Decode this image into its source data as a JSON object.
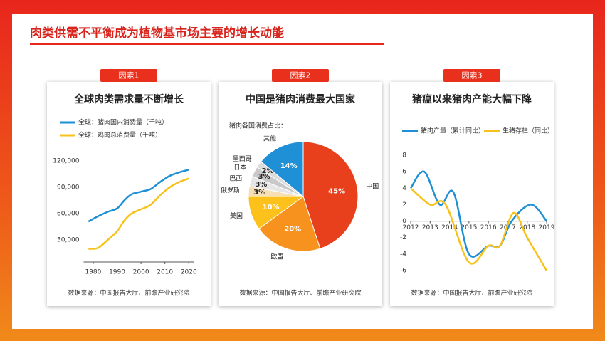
{
  "title": "肉类供需不平衡成为植物基市场主要的增长动能",
  "chart_data": [
    {
      "type": "line",
      "badge": "因素1",
      "title": "全球肉类需求量不断增长",
      "xlim": [
        1976,
        2022
      ],
      "xticks": [
        1980,
        1990,
        2000,
        2010,
        2020
      ],
      "ylim": [
        5000,
        120000
      ],
      "yticks": [
        {
          "value": 30000,
          "label": "30,000"
        },
        {
          "value": 60000,
          "label": "60,000"
        },
        {
          "value": 90000,
          "label": "90,000"
        },
        {
          "value": 120000,
          "label": "120,000"
        }
      ],
      "x": [
        1978,
        1982,
        1986,
        1990,
        1993,
        1996,
        2000,
        2004,
        2008,
        2012,
        2016,
        2020
      ],
      "series": [
        {
          "name": "全球：猪肉国内消费量（千吨）",
          "color": "#1f8fd6",
          "values": [
            51000,
            57000,
            62000,
            66000,
            75000,
            82000,
            85000,
            88000,
            96000,
            103000,
            107000,
            110000
          ]
        },
        {
          "name": "全球：鸡肉总消费量（千吨）",
          "color": "#f7c21b",
          "values": [
            20000,
            21000,
            30000,
            40000,
            52000,
            60000,
            65000,
            70000,
            81000,
            90000,
            96000,
            100000
          ]
        }
      ],
      "source": "数据来源：中国报告大厅、前瞻产业研究院"
    },
    {
      "type": "pie",
      "badge": "因素2",
      "title": "中国是猪肉消费最大国家",
      "subtitle": "猪肉各国消费占比：",
      "categories": [
        "中国",
        "欧盟",
        "美国",
        "俄罗斯",
        "巴西",
        "日本",
        "墨西哥",
        "其他"
      ],
      "values": [
        45,
        20,
        10,
        3,
        3,
        3,
        2,
        14
      ],
      "value_labels": [
        "45%",
        "20%",
        "10%",
        "3%",
        "3%",
        "3%",
        "2%",
        "14%"
      ],
      "colors": [
        "#e8401c",
        "#f7921e",
        "#fcc21b",
        "#f6dfb5",
        "#e6e6e6",
        "#c9c9c9",
        "#dcdcdc",
        "#1f8fd6"
      ],
      "source": "数据来源：中国报告大厅、前瞻产业研究院"
    },
    {
      "type": "line",
      "badge": "因素3",
      "title": "猪瘟以来猪肉产能大幅下降",
      "xlim": [
        2012,
        2019
      ],
      "xticks": [
        2012,
        2013,
        2014,
        2015,
        2016,
        2017,
        2018,
        2019
      ],
      "ylim": [
        -6,
        8
      ],
      "yticks": [
        -6,
        -4,
        -2,
        0,
        2,
        4,
        6,
        8
      ],
      "legend": "top",
      "series": [
        {
          "name": "猪肉产量（累计同比）",
          "color": "#1f8fd6",
          "x": [
            2012,
            2012.7,
            2013.5,
            2014.2,
            2015,
            2016,
            2016.6,
            2017.2,
            2018.2,
            2019
          ],
          "values": [
            4,
            6,
            2,
            3.5,
            -4,
            -3,
            -3,
            0,
            2,
            0
          ]
        },
        {
          "name": "生猪存栏（同比）",
          "color": "#f7c21b",
          "x": [
            2012,
            2013,
            2013.8,
            2015,
            2016,
            2016.6,
            2017.3,
            2018,
            2019
          ],
          "values": [
            4,
            2,
            2,
            -5,
            -3,
            -3,
            1,
            -2,
            -6
          ]
        }
      ],
      "source": "数据来源：中国报告大厅、前瞻产业研究院"
    }
  ]
}
